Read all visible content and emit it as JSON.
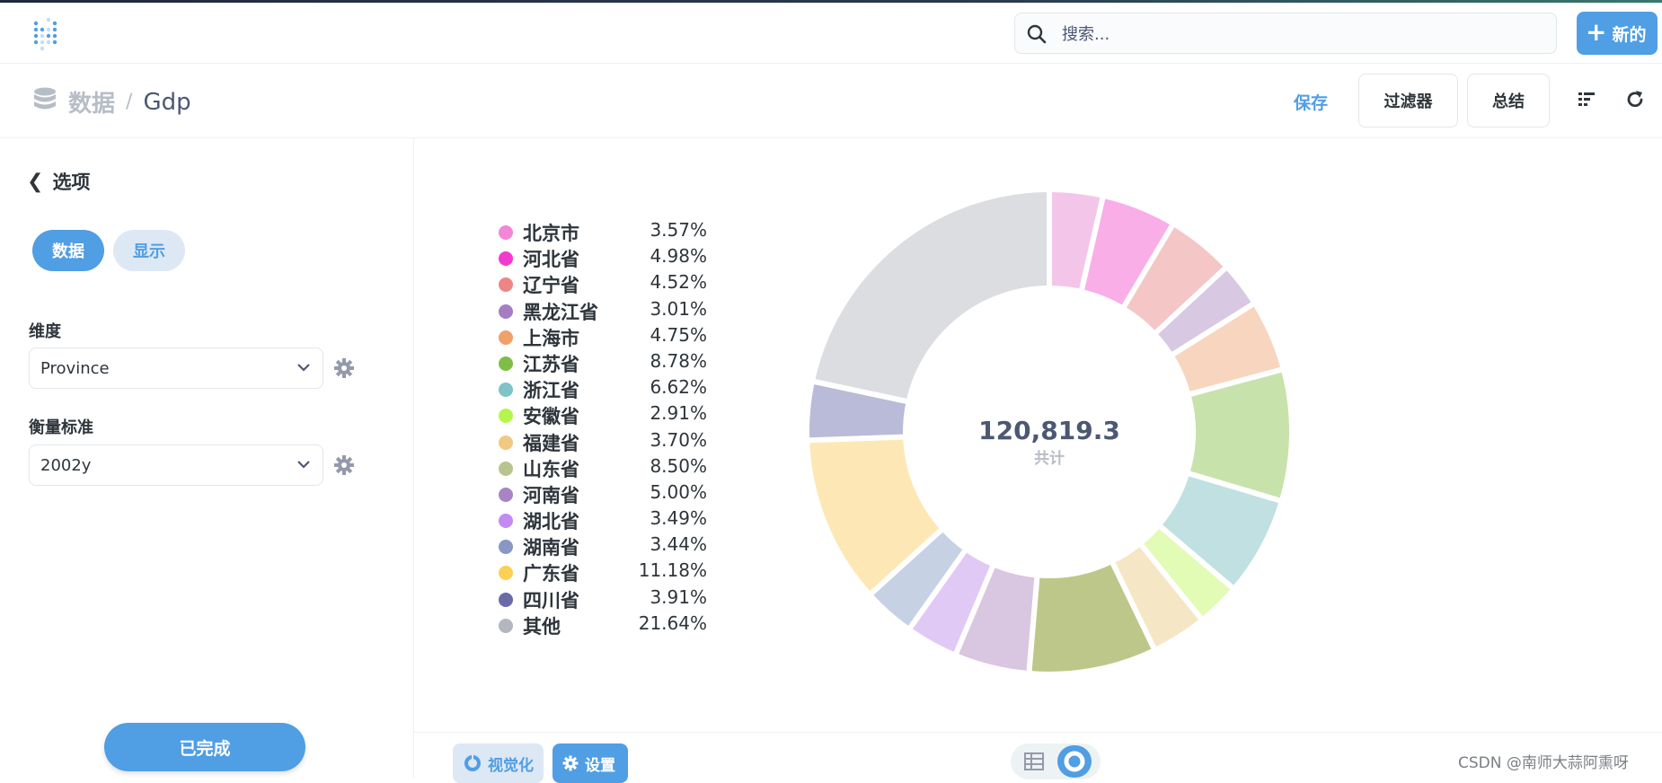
{
  "colors": {
    "accent": "#509ee3",
    "text": "#4c5773",
    "muted": "#b7bdc7"
  },
  "nav": {
    "logo_icon": "metabase-logo-icon",
    "search_placeholder": "搜索...",
    "new_label": "新的"
  },
  "header": {
    "breadcrumb_root": "数据",
    "breadcrumb_sep": "/",
    "breadcrumb_table": "Gdp",
    "save_label": "保存",
    "filter_label": "过滤器",
    "summarize_label": "总结"
  },
  "sidebar": {
    "back_label": "选项",
    "tab_data": "数据",
    "tab_display": "显示",
    "dimension_label": "维度",
    "dimension_value": "Province",
    "measure_label": "衡量标准",
    "measure_value": "2002y",
    "done_label": "已完成"
  },
  "chart_data": {
    "type": "pie",
    "donut": true,
    "total": "120,819.3",
    "total_label": "共计",
    "slices": [
      {
        "name": "北京市",
        "pct": "3.57%",
        "value": 3.57,
        "color": "#f3c6e9",
        "legend_color": "#f287d8"
      },
      {
        "name": "河北省",
        "pct": "4.98%",
        "value": 4.98,
        "color": "#f9aee8",
        "legend_color": "#f13bce"
      },
      {
        "name": "辽宁省",
        "pct": "4.52%",
        "value": 4.52,
        "color": "#f4c6c6",
        "legend_color": "#ee8585"
      },
      {
        "name": "黑龙江省",
        "pct": "3.01%",
        "value": 3.01,
        "color": "#d8c8e2",
        "legend_color": "#a67dc3"
      },
      {
        "name": "上海市",
        "pct": "4.75%",
        "value": 4.75,
        "color": "#f7d5bf",
        "legend_color": "#f0a06b"
      },
      {
        "name": "江苏省",
        "pct": "8.78%",
        "value": 8.78,
        "color": "#c8e2ab",
        "legend_color": "#80bd46"
      },
      {
        "name": "浙江省",
        "pct": "6.62%",
        "value": 6.62,
        "color": "#c0e0e2",
        "legend_color": "#7fc2c7"
      },
      {
        "name": "安徽省",
        "pct": "2.91%",
        "value": 2.91,
        "color": "#e2fbb5",
        "legend_color": "#b5f64c"
      },
      {
        "name": "福建省",
        "pct": "3.70%",
        "value": 3.7,
        "color": "#f5e7c5",
        "legend_color": "#f0c881"
      },
      {
        "name": "山东省",
        "pct": "8.50%",
        "value": 8.5,
        "color": "#bec78a",
        "legend_color": "#b8c490"
      },
      {
        "name": "河南省",
        "pct": "5.00%",
        "value": 5.0,
        "color": "#d9c6e0",
        "legend_color": "#a884c6"
      },
      {
        "name": "湖北省",
        "pct": "3.49%",
        "value": 3.49,
        "color": "#e1c9f5",
        "legend_color": "#c38bf2"
      },
      {
        "name": "湖南省",
        "pct": "3.44%",
        "value": 3.44,
        "color": "#c6d1e3",
        "legend_color": "#8897c3"
      },
      {
        "name": "广东省",
        "pct": "11.18%",
        "value": 11.18,
        "color": "#fde8b5",
        "legend_color": "#fbd055"
      },
      {
        "name": "四川省",
        "pct": "3.91%",
        "value": 3.91,
        "color": "#babbd8",
        "legend_color": "#6a6aa8"
      },
      {
        "name": "其他",
        "pct": "21.64%",
        "value": 21.64,
        "color": "#dcdde0",
        "legend_color": "#b4b7bd"
      }
    ]
  },
  "footer": {
    "visualize_label": "视觉化",
    "settings_label": "设置",
    "watermark": "CSDN @南师大蒜阿熏呀"
  }
}
